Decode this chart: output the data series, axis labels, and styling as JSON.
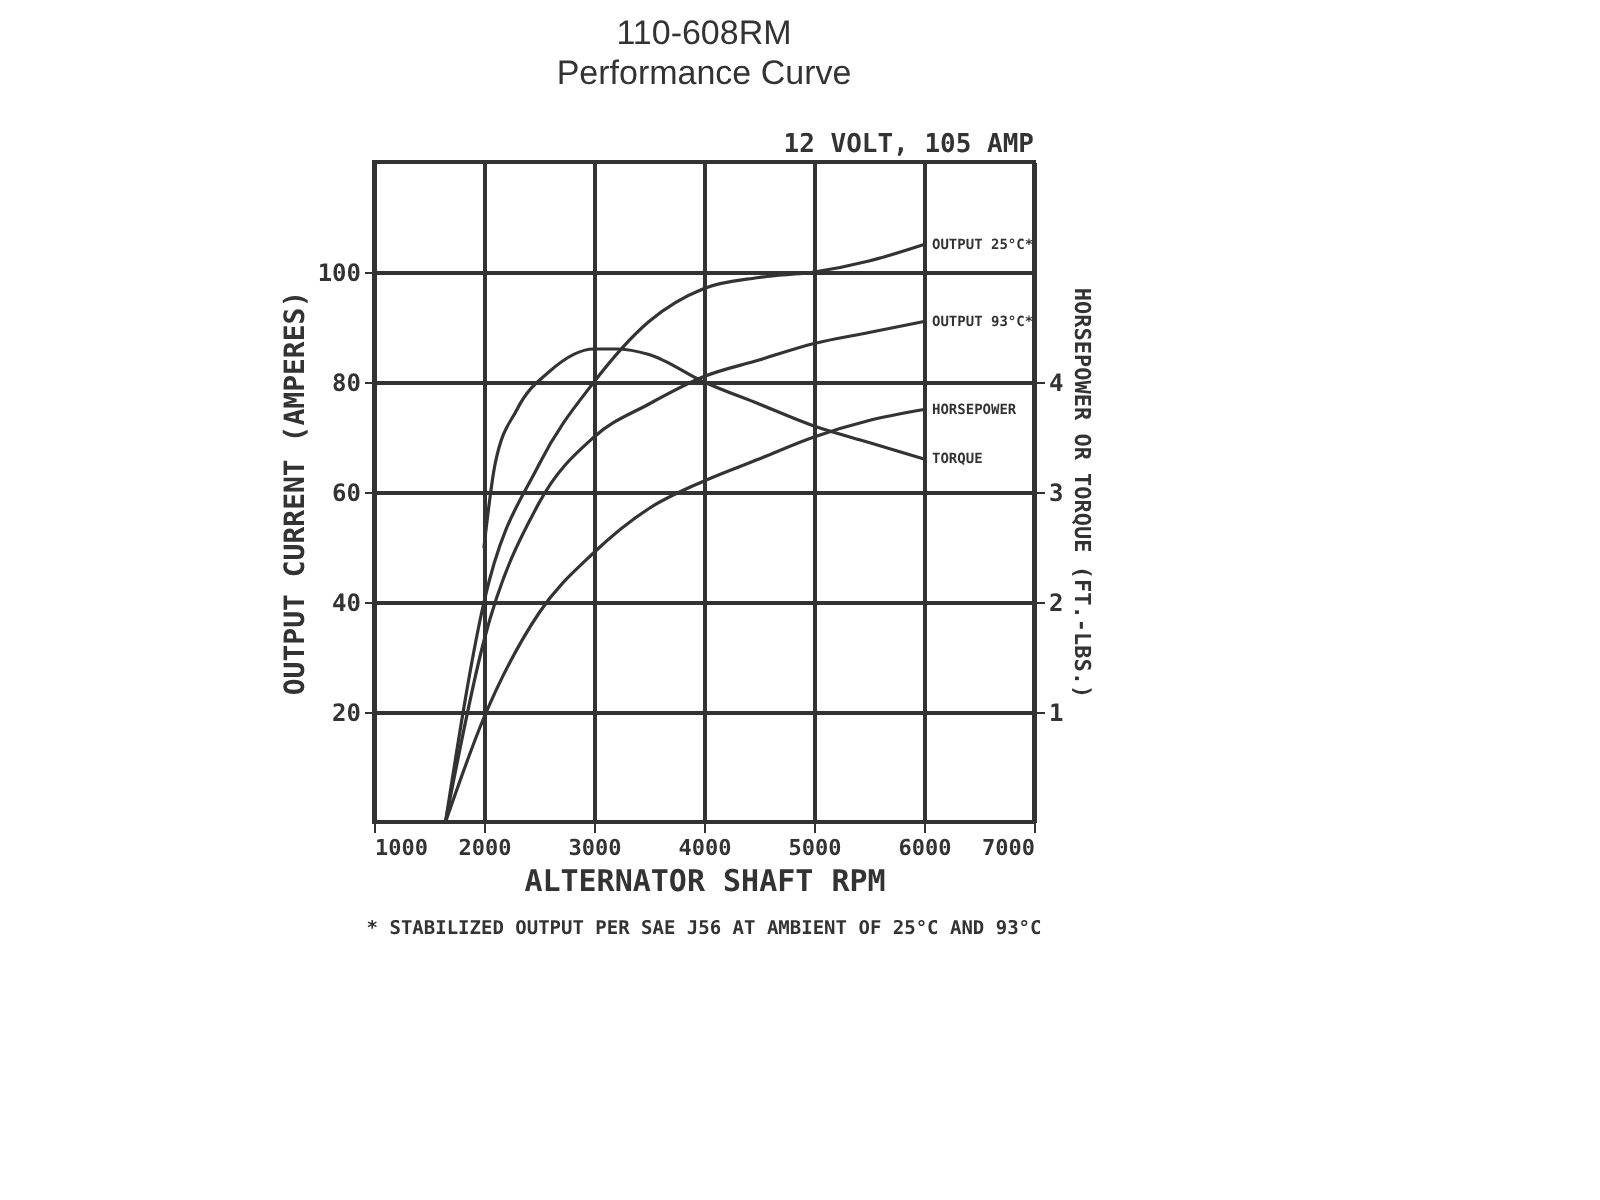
{
  "chart_data": {
    "type": "line",
    "title": "110-608RM",
    "subtitle": "Performance Curve",
    "xlabel": "ALTERNATOR SHAFT RPM",
    "ylabel": "OUTPUT CURRENT (AMPERES)",
    "y2label": "HORSEPOWER OR TORQUE (FT.-LBS.)",
    "annotations": [
      "12 VOLT, 105 AMP",
      "* STABILIZED OUTPUT PER SAE J56 AT AMBIENT OF 25°C AND 93°C"
    ],
    "xlim": [
      1000,
      7000
    ],
    "xticks": [
      1000,
      2000,
      3000,
      4000,
      5000,
      6000,
      7000
    ],
    "ylim": [
      0,
      120
    ],
    "yticks": [
      20,
      40,
      60,
      80,
      100
    ],
    "y2lim": [
      0,
      6
    ],
    "y2ticks": [
      1,
      2,
      3,
      4
    ],
    "grid": true,
    "legend": false,
    "marker": "none",
    "line_style": "solid",
    "series": [
      {
        "name": "OUTPUT 25°C*",
        "color": "#333333",
        "x": [
          1650,
          2000,
          2500,
          3000,
          3500,
          4000,
          4500,
          5000,
          5500,
          6000
        ],
        "values": [
          0,
          40,
          65,
          80,
          91,
          97,
          99,
          100,
          102,
          105
        ]
      },
      {
        "name": "OUTPUT 93°C*",
        "color": "#333333",
        "x": [
          1650,
          2000,
          2500,
          3000,
          3500,
          4000,
          4500,
          5000,
          5500,
          6000
        ],
        "values": [
          0,
          33,
          58,
          70,
          76,
          81,
          84,
          87,
          89,
          91
        ]
      },
      {
        "name": "HORSEPOWER",
        "color": "#333333",
        "axis": "y2",
        "x": [
          1650,
          2000,
          2500,
          3000,
          3500,
          4000,
          4500,
          5000,
          5500,
          6000
        ],
        "values": [
          0,
          0.95,
          1.9,
          2.45,
          2.85,
          3.1,
          3.3,
          3.5,
          3.65,
          3.75
        ]
      },
      {
        "name": "TORQUE",
        "color": "#333333",
        "axis": "y2",
        "x": [
          2000,
          2100,
          2300,
          2600,
          3000,
          3200,
          3500,
          4000,
          4500,
          5000,
          5500,
          6000
        ],
        "values": [
          2.5,
          3.25,
          3.75,
          4.1,
          4.3,
          4.3,
          4.25,
          4,
          3.8,
          3.6,
          3.45,
          3.3
        ]
      }
    ]
  }
}
